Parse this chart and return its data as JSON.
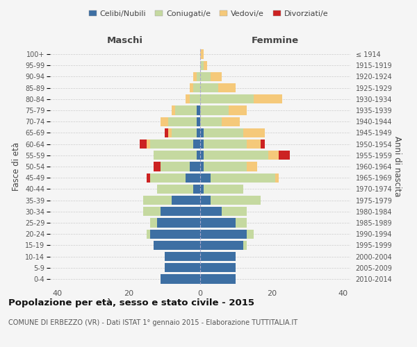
{
  "age_groups": [
    "0-4",
    "5-9",
    "10-14",
    "15-19",
    "20-24",
    "25-29",
    "30-34",
    "35-39",
    "40-44",
    "45-49",
    "50-54",
    "55-59",
    "60-64",
    "65-69",
    "70-74",
    "75-79",
    "80-84",
    "85-89",
    "90-94",
    "95-99",
    "100+"
  ],
  "birth_years": [
    "2010-2014",
    "2005-2009",
    "2000-2004",
    "1995-1999",
    "1990-1994",
    "1985-1989",
    "1980-1984",
    "1975-1979",
    "1970-1974",
    "1965-1969",
    "1960-1964",
    "1955-1959",
    "1950-1954",
    "1945-1949",
    "1940-1944",
    "1935-1939",
    "1930-1934",
    "1925-1929",
    "1920-1924",
    "1915-1919",
    "≤ 1914"
  ],
  "colors": {
    "celibi": "#3d6fa3",
    "coniugati": "#c5d9a0",
    "vedovi": "#f5c97a",
    "divorziati": "#cc2222"
  },
  "males": {
    "celibi": [
      11,
      10,
      10,
      13,
      14,
      12,
      11,
      8,
      2,
      4,
      3,
      1,
      2,
      1,
      1,
      1,
      0,
      0,
      0,
      0,
      0
    ],
    "coniugati": [
      0,
      0,
      0,
      0,
      1,
      2,
      5,
      8,
      10,
      10,
      8,
      12,
      12,
      7,
      8,
      6,
      3,
      2,
      1,
      0,
      0
    ],
    "vedovi": [
      0,
      0,
      0,
      0,
      0,
      0,
      0,
      0,
      0,
      0,
      0,
      0,
      1,
      1,
      2,
      1,
      1,
      1,
      1,
      0,
      0
    ],
    "divorziati": [
      0,
      0,
      0,
      0,
      0,
      0,
      0,
      0,
      0,
      1,
      2,
      0,
      2,
      1,
      0,
      0,
      0,
      0,
      0,
      0,
      0
    ]
  },
  "females": {
    "celibi": [
      10,
      10,
      10,
      12,
      13,
      10,
      6,
      3,
      1,
      3,
      1,
      1,
      1,
      1,
      0,
      0,
      0,
      0,
      0,
      0,
      0
    ],
    "coniugati": [
      0,
      0,
      0,
      1,
      2,
      3,
      7,
      14,
      11,
      18,
      12,
      18,
      12,
      11,
      6,
      8,
      15,
      5,
      3,
      1,
      0
    ],
    "vedovi": [
      0,
      0,
      0,
      0,
      0,
      0,
      0,
      0,
      0,
      1,
      3,
      3,
      4,
      6,
      5,
      5,
      8,
      5,
      3,
      1,
      1
    ],
    "divorziati": [
      0,
      0,
      0,
      0,
      0,
      0,
      0,
      0,
      0,
      0,
      0,
      3,
      1,
      0,
      0,
      0,
      0,
      0,
      0,
      0,
      0
    ]
  },
  "xlim": 42,
  "title": "Popolazione per età, sesso e stato civile - 2015",
  "subtitle": "COMUNE DI ERBEZZO (VR) - Dati ISTAT 1° gennaio 2015 - Elaborazione TUTTITALIA.IT",
  "ylabel": "Fasce di età",
  "ylabel_right": "Anni di nascita",
  "xlabel_left": "Maschi",
  "xlabel_right": "Femmine",
  "legend_labels": [
    "Celibi/Nubili",
    "Coniugati/e",
    "Vedovi/e",
    "Divorziati/e"
  ],
  "bg_color": "#f5f5f5",
  "plot_bg": "#f5f5f5"
}
